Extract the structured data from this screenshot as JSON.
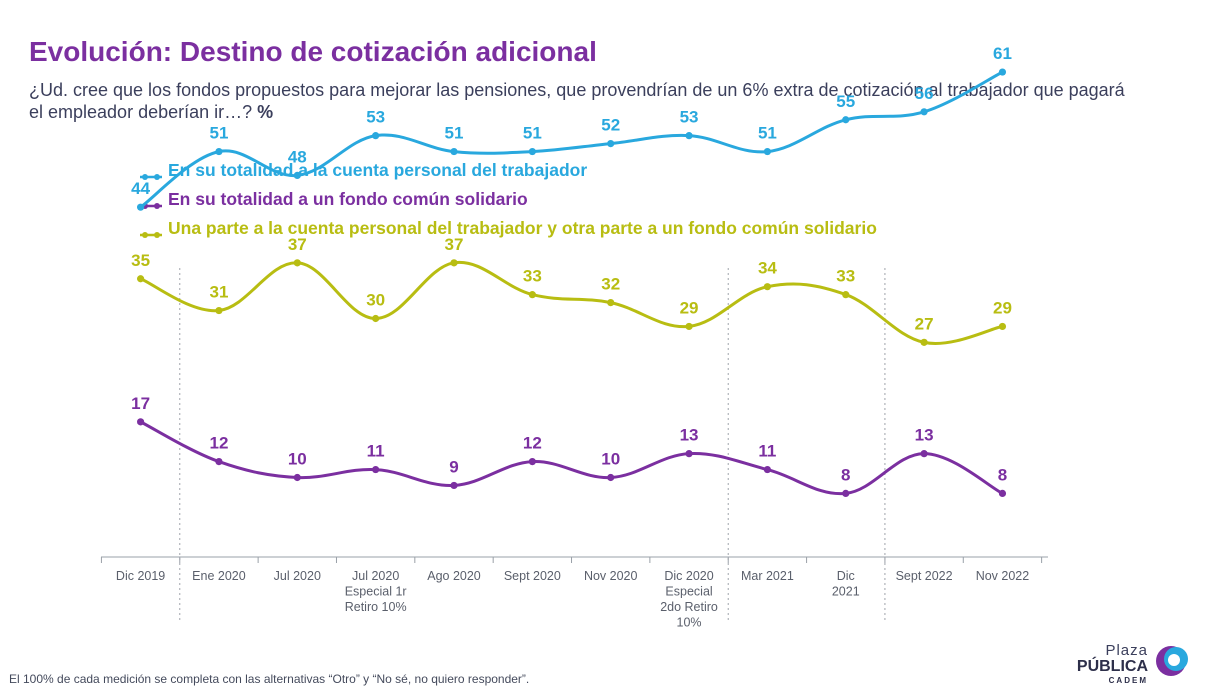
{
  "header": {
    "title": "Evolución: Destino de cotización adicional",
    "question": "¿Ud. cree que los fondos propuestos para mejorar las pensiones, que provendrían de un 6% extra de cotización al trabajador que pagará el empleador deberían ir…?",
    "unit": "%"
  },
  "chart_data": {
    "type": "line",
    "title": "",
    "xlabel": "",
    "ylabel": "",
    "ylim": [
      0,
      70
    ],
    "grid": false,
    "legend_position": "top-left",
    "categories": [
      [
        "Dic 2019"
      ],
      [
        "Ene 2020"
      ],
      [
        "Jul 2020"
      ],
      [
        "Jul 2020",
        "Especial 1r",
        "Retiro 10%"
      ],
      [
        "Ago 2020"
      ],
      [
        "Sept 2020"
      ],
      [
        "Nov 2020"
      ],
      [
        "Dic 2020",
        "Especial",
        "2do Retiro",
        "10%"
      ],
      [
        "Mar 2021"
      ],
      [
        "Dic",
        "2021"
      ],
      [
        "Sept 2022"
      ],
      [
        "Nov 2022"
      ]
    ],
    "dashed_separators_after_index": [
      0,
      7,
      9
    ],
    "series": [
      {
        "name": "En su totalidad a la cuenta personal del trabajador",
        "color": "#29a8de",
        "values": [
          44,
          51,
          48,
          53,
          51,
          51,
          52,
          53,
          51,
          55,
          56,
          61
        ]
      },
      {
        "name": "En su totalidad a un fondo común solidario",
        "color": "#7b2fa0",
        "values": [
          17,
          12,
          10,
          11,
          9,
          12,
          10,
          13,
          11,
          8,
          13,
          8
        ]
      },
      {
        "name": "Una parte a la cuenta personal del trabajador y otra parte a un fondo común solidario",
        "color": "#b8bd12",
        "values": [
          35,
          31,
          37,
          30,
          37,
          33,
          32,
          29,
          34,
          33,
          27,
          29
        ]
      }
    ]
  },
  "footnote": "El 100% de cada medición se completa con las alternativas “Otro” y “No sé, no quiero responder”.",
  "logo": {
    "line1": "Plaza",
    "line2": "PÚBLICA",
    "line3": "CADEM"
  }
}
